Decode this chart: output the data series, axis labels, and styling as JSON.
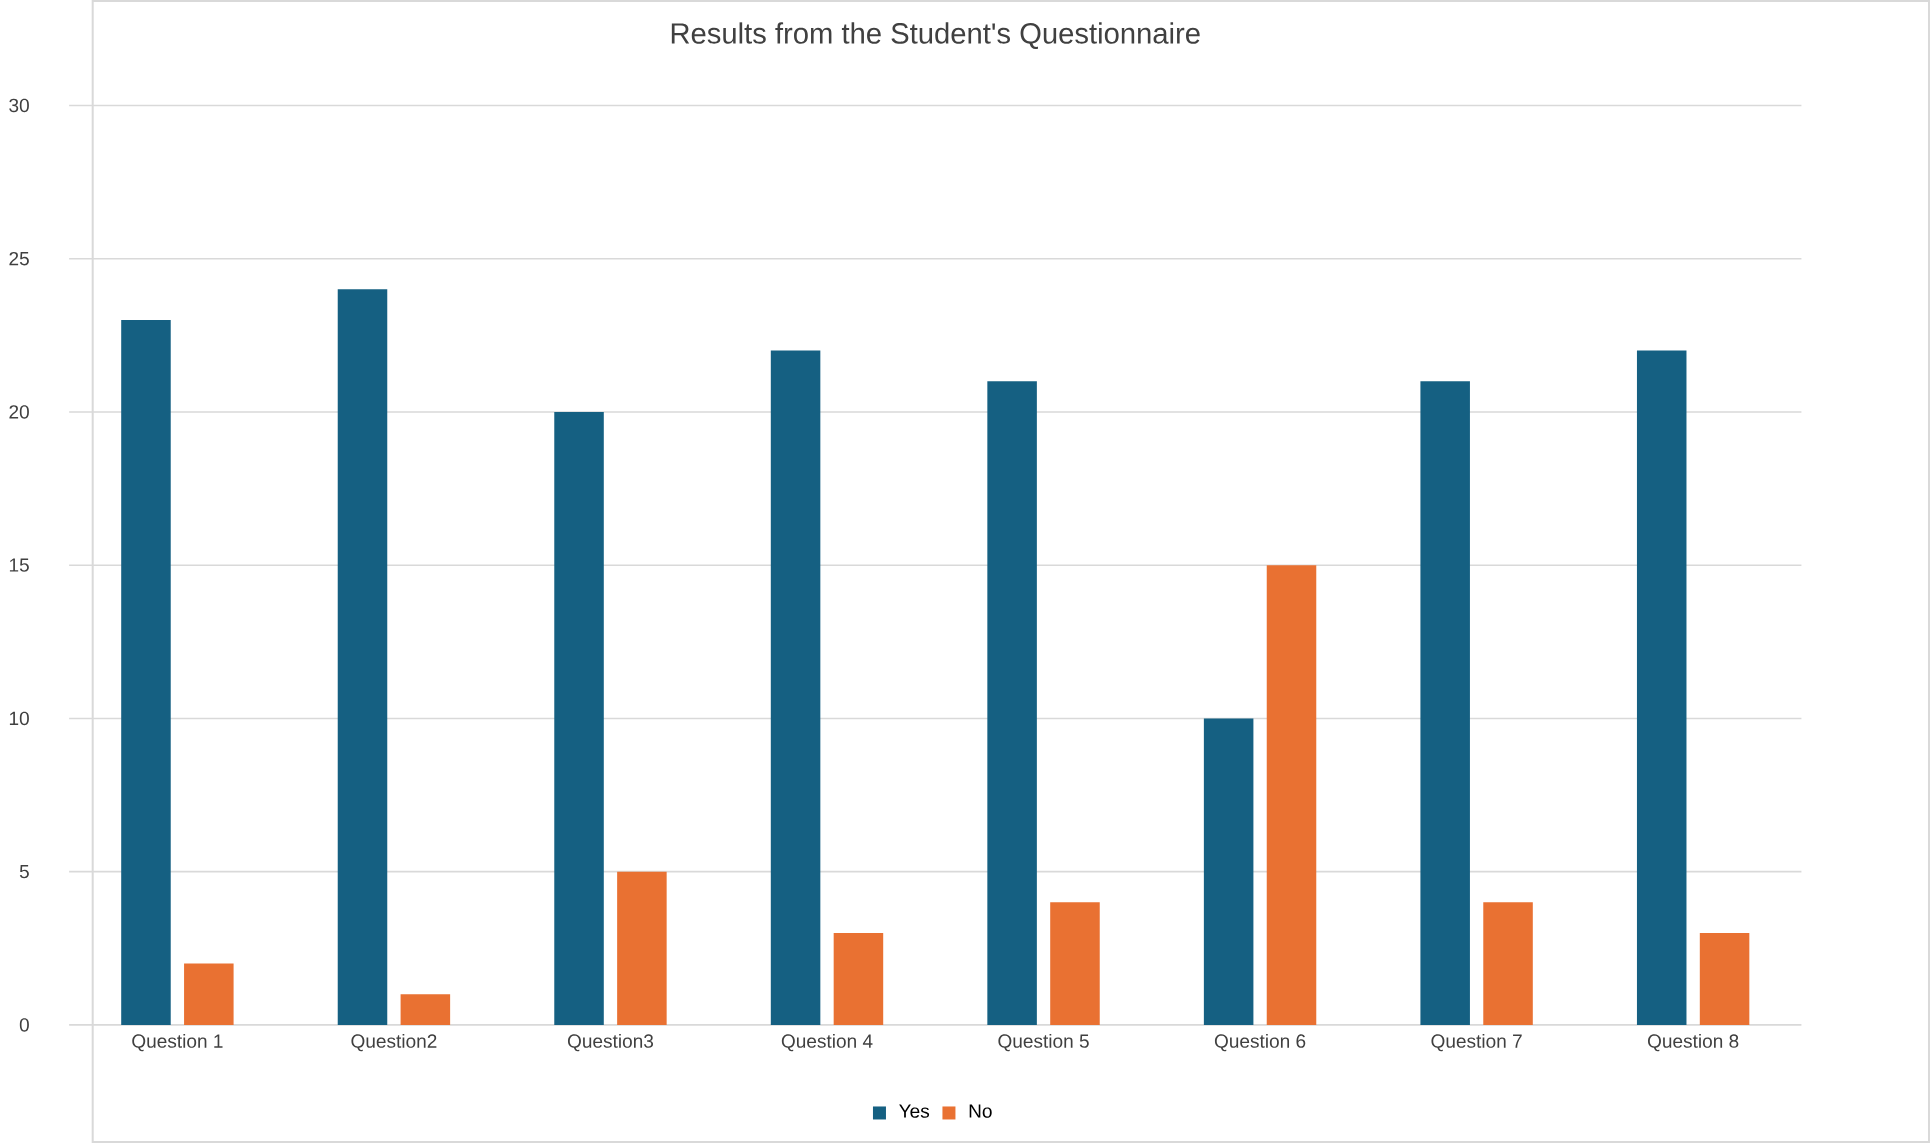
{
  "chart_data": {
    "type": "bar",
    "title": "Results from the Student's Questionnaire",
    "categories": [
      "Question 1",
      "Question2",
      "Question3",
      "Question 4",
      "Question 5",
      "Question 6",
      "Question 7",
      "Question 8"
    ],
    "series": [
      {
        "name": "Yes",
        "color": "#156082",
        "values": [
          23,
          24,
          20,
          22,
          21,
          10,
          21,
          22
        ]
      },
      {
        "name": "No",
        "color": "#e97132",
        "values": [
          2,
          1,
          5,
          3,
          4,
          15,
          4,
          3
        ]
      }
    ],
    "ylim": [
      0,
      30
    ],
    "yticks": [
      0,
      5,
      10,
      15,
      20,
      25,
      30
    ],
    "grid": "y",
    "legend": "bottom"
  }
}
